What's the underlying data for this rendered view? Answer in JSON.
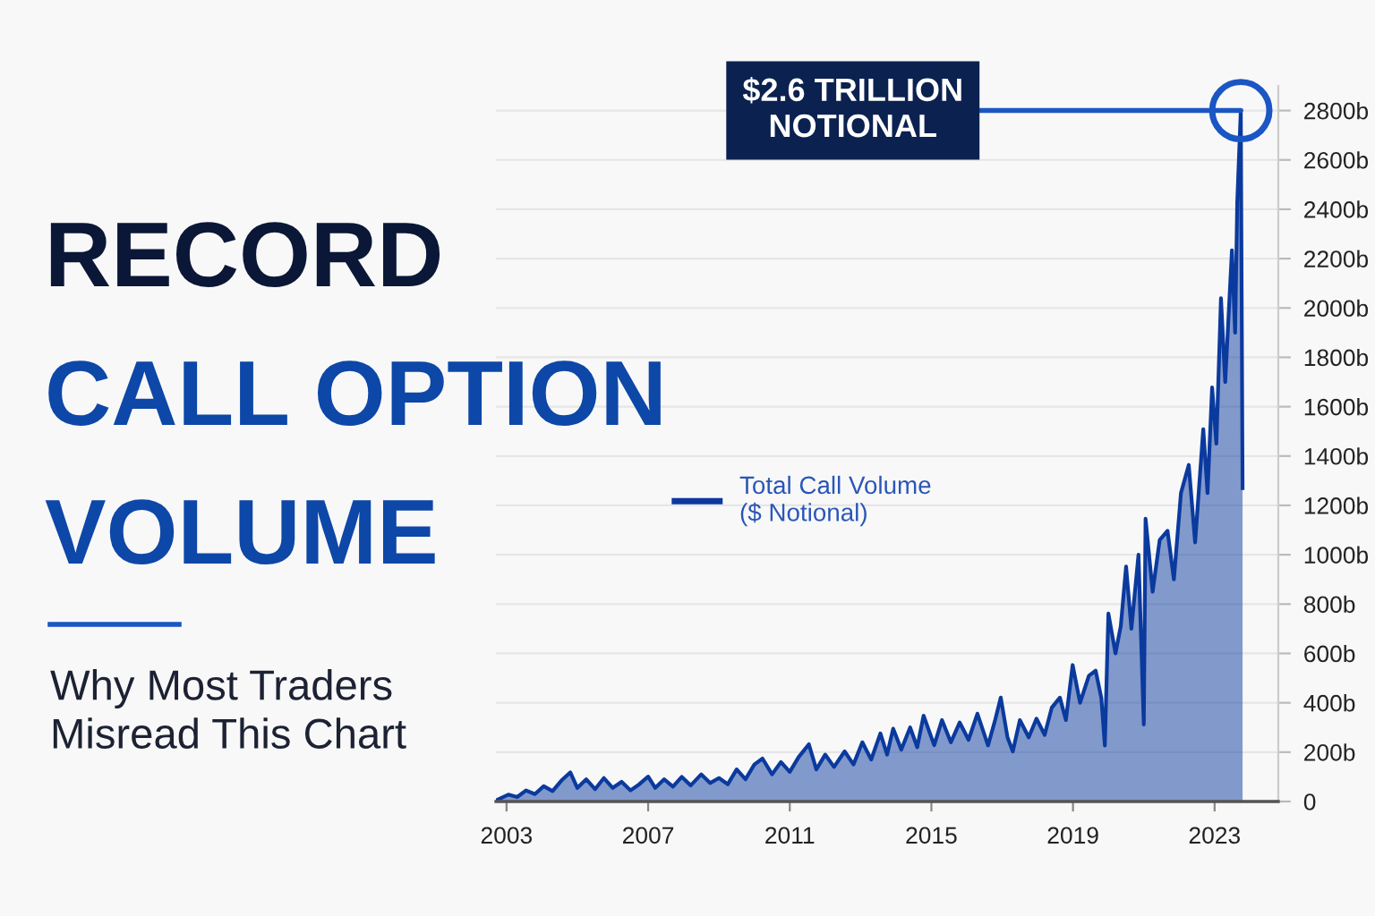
{
  "chart_data": {
    "type": "area",
    "title": "RECORD\nCALL OPTION\nVOLUME",
    "subtitle": "Why Most Traders\nMisread This Chart",
    "annotations": [
      {
        "text": "$2.6 TRILLION\nNOTIONAL",
        "x": 2023.74,
        "y": 2800
      }
    ],
    "series": [
      {
        "name": "Total Call Volume\n($ Notional)",
        "color": "#0b3a9e",
        "x": [
          2002.75,
          2003.05,
          2003.3,
          2003.55,
          2003.8,
          2004.05,
          2004.3,
          2004.55,
          2004.8,
          2005.0,
          2005.25,
          2005.5,
          2005.75,
          2006.0,
          2006.25,
          2006.5,
          2006.75,
          2007.0,
          2007.2,
          2007.45,
          2007.7,
          2007.95,
          2008.2,
          2008.5,
          2008.75,
          2009.0,
          2009.25,
          2009.5,
          2009.75,
          2010.0,
          2010.23,
          2010.5,
          2010.75,
          2011.0,
          2011.25,
          2011.54,
          2011.75,
          2012.0,
          2012.25,
          2012.55,
          2012.8,
          2013.05,
          2013.3,
          2013.56,
          2013.75,
          2013.92,
          2014.15,
          2014.4,
          2014.6,
          2014.78,
          2015.08,
          2015.3,
          2015.55,
          2015.8,
          2016.05,
          2016.3,
          2016.6,
          2016.8,
          2016.96,
          2017.15,
          2017.3,
          2017.5,
          2017.75,
          2017.97,
          2018.2,
          2018.4,
          2018.63,
          2018.8,
          2018.99,
          2019.2,
          2019.45,
          2019.64,
          2019.8,
          2019.9,
          2020.0,
          2020.2,
          2020.35,
          2020.5,
          2020.65,
          2020.85,
          2021.0,
          2021.05,
          2021.25,
          2021.45,
          2021.67,
          2021.85,
          2022.05,
          2022.27,
          2022.45,
          2022.68,
          2022.8,
          2022.93,
          2023.05,
          2023.18,
          2023.3,
          2023.49,
          2023.58,
          2023.64,
          2023.74,
          2023.79
        ],
        "values": [
          8,
          28,
          18,
          45,
          30,
          62,
          42,
          85,
          118,
          55,
          90,
          50,
          95,
          55,
          80,
          45,
          70,
          101,
          55,
          90,
          60,
          100,
          65,
          110,
          75,
          95,
          70,
          130,
          90,
          150,
          174,
          110,
          160,
          120,
          180,
          232,
          130,
          190,
          140,
          203,
          150,
          240,
          170,
          276,
          190,
          295,
          210,
          300,
          220,
          348,
          228,
          330,
          240,
          320,
          250,
          356,
          227,
          330,
          421,
          260,
          203,
          330,
          260,
          336,
          270,
          380,
          421,
          330,
          553,
          400,
          510,
          530,
          420,
          227,
          762,
          600,
          711,
          952,
          700,
          1000,
          312,
          1146,
          850,
          1060,
          1097,
          900,
          1250,
          1364,
          1050,
          1509,
          1250,
          1678,
          1450,
          2040,
          1700,
          2234,
          1900,
          2430,
          2800,
          1270
        ]
      }
    ],
    "xlim": [
      2002.7,
      2024.8
    ],
    "xticks": [
      2003,
      2007,
      2011,
      2015,
      2019,
      2023
    ],
    "ylim": [
      0,
      2900
    ],
    "yticks": [
      0,
      {
        "value": 200,
        "label": "200b"
      },
      {
        "value": 400,
        "label": "400b"
      },
      {
        "value": 600,
        "label": "600b"
      },
      {
        "value": 800,
        "label": "800b"
      },
      {
        "value": 1000,
        "label": "1000b"
      },
      {
        "value": 1200,
        "label": "1200b"
      },
      {
        "value": 1400,
        "label": "1400b"
      },
      {
        "value": 1600,
        "label": "1600b"
      },
      {
        "value": 1800,
        "label": "1800b"
      },
      {
        "value": 2000,
        "label": "2000b"
      },
      {
        "value": 2200,
        "label": "2200b"
      },
      {
        "value": 2400,
        "label": "2400b"
      },
      {
        "value": 2600,
        "label": "2600b"
      },
      {
        "value": 2800,
        "label": "2800b"
      }
    ],
    "grid": "y",
    "legend": "left"
  }
}
